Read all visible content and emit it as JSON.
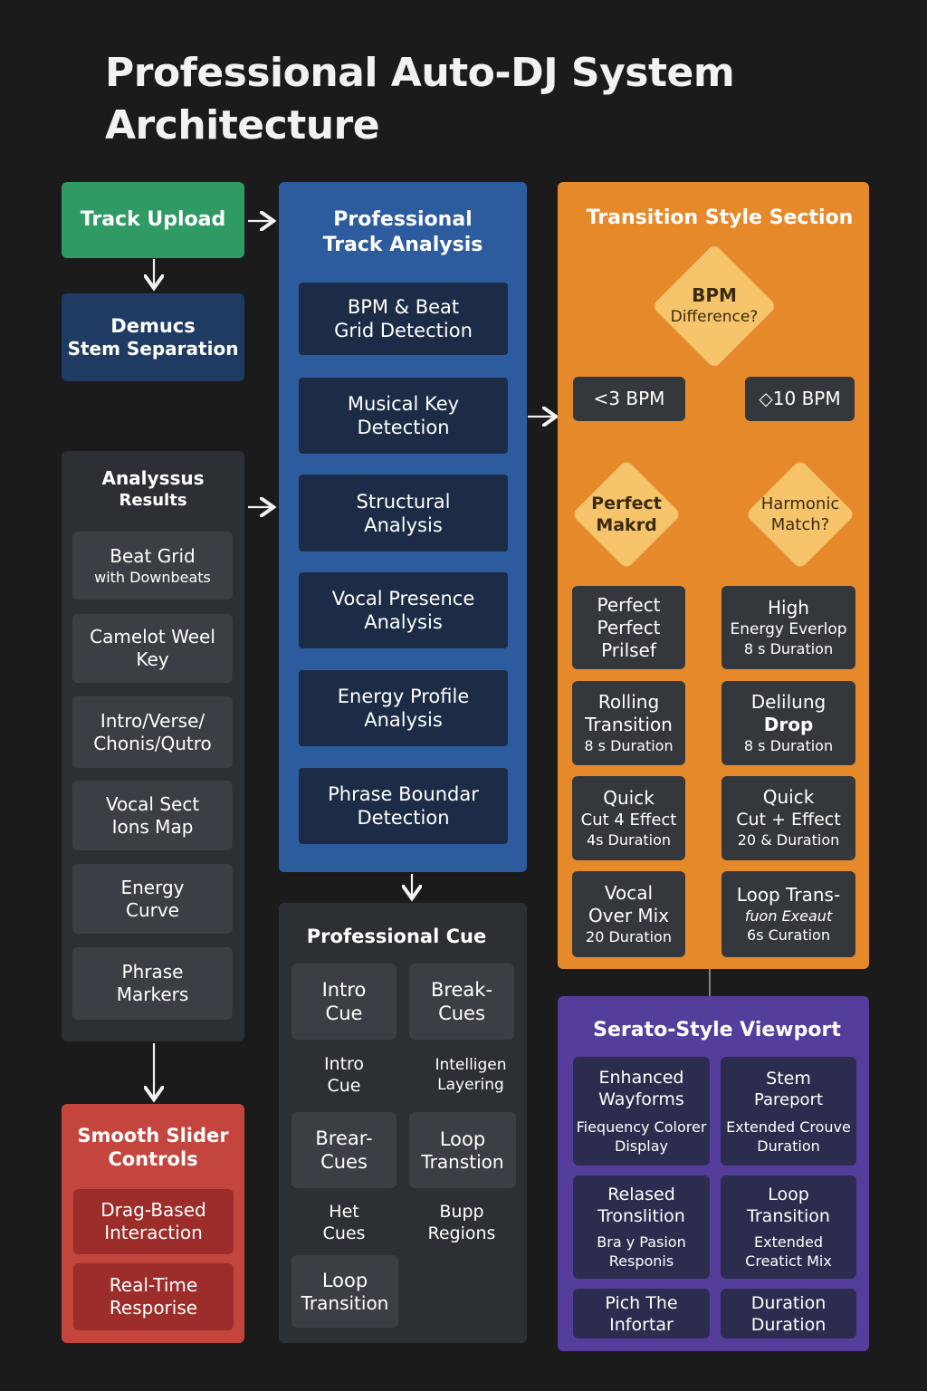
{
  "title": {
    "line1": "Professional Auto-DJ System",
    "line2": "Architecture"
  },
  "colors": {
    "background": "#1b1b1c",
    "green": "#2f9a63",
    "blue_panel": "#2d5c9e",
    "navy": "#1c2c47",
    "orange_panel": "#e5892a",
    "purple_panel": "#553d9b",
    "red_panel": "#c4453d",
    "grey_panel": "#2c2f33"
  },
  "left": {
    "track_upload": "Track Upload",
    "demucs": {
      "line1": "Demucs",
      "line2": "Stem Separation"
    },
    "analysis_results": {
      "title": {
        "line1": "Analyssus",
        "line2": "Results"
      },
      "items": [
        {
          "line1": "Beat Grid",
          "line2": "with Downbeats"
        },
        {
          "line1": "Camelot Weel",
          "line2": "Key"
        },
        {
          "line1": "Intro/Verse/",
          "line2": "Chonis/Qutro"
        },
        {
          "line1": "Vocal Sect",
          "line2": "Ions Map"
        },
        {
          "line1": "Energy",
          "line2": "Curve"
        },
        {
          "line1": "Phrase",
          "line2": "Markers"
        }
      ]
    },
    "slider": {
      "title": {
        "line1": "Smooth Slider",
        "line2": "Controls"
      },
      "items": [
        {
          "line1": "Drag-Based",
          "line2": "Interaction"
        },
        {
          "line1": "Real-Time",
          "line2": "Resporise"
        }
      ]
    }
  },
  "analysis": {
    "title": {
      "line1": "Professional",
      "line2": "Track Analysis"
    },
    "steps": [
      {
        "line1": "BPM & Beat",
        "line2": "Grid Detection"
      },
      {
        "line1": "Musical Key",
        "line2": "Detection"
      },
      {
        "line1": "Structural",
        "line2": "Analysis"
      },
      {
        "line1": "Vocal Presence",
        "line2": "Analysis"
      },
      {
        "line1": "Energy Profile",
        "line2": "Analysis"
      },
      {
        "line1": "Phrase Boundar",
        "line2": "Detection"
      }
    ]
  },
  "cue": {
    "title": "Professional Cue",
    "items": [
      {
        "line1": "Intro",
        "line2": "Cue",
        "boxed": true
      },
      {
        "line1": "Break-",
        "line2": "Cues",
        "boxed": true
      },
      {
        "line1": "Intro",
        "line2": "Cue",
        "boxed": false
      },
      {
        "line1": "Intelligen",
        "line2": "Layering",
        "boxed": false
      },
      {
        "line1": "Brear-",
        "line2": "Cues",
        "boxed": true
      },
      {
        "line1": "Loop",
        "line2": "Transtion",
        "boxed": true
      },
      {
        "line1": "Het",
        "line2": "Cues",
        "boxed": false
      },
      {
        "line1": "Bupp",
        "line2": "Regions",
        "boxed": false
      },
      {
        "line1": "Loop",
        "line2": "Transition",
        "boxed": true
      }
    ]
  },
  "transition": {
    "title": "Transition Style Section",
    "bpm_diamond": {
      "line1": "BPM",
      "line2": "Difference?"
    },
    "left_bpm": "<3 BPM",
    "right_bpm": "◇10 BPM",
    "perfect_diamond": {
      "line1": "Perfect",
      "line2": "Makrd"
    },
    "harmonic_diamond": {
      "line1": "Harmonic",
      "line2": "Match?"
    },
    "left_cards": [
      {
        "line1": "Perfect",
        "line2": "Perfect",
        "line3": "Prilsef"
      },
      {
        "line1": "Rolling",
        "line2": "Transition",
        "line3": "8 s Duration"
      },
      {
        "line1": "Quick",
        "line2": "Cut 4 Effect",
        "line3": "4s Duration"
      },
      {
        "line1": "Vocal",
        "line2": "Over Mix",
        "line3": "20 Duration"
      }
    ],
    "right_cards": [
      {
        "line1": "High",
        "line2": "Energy Everlop",
        "line3": "8 s Duration"
      },
      {
        "line1": "Delilung",
        "line2": "Drop",
        "line3": "8 s Duration"
      },
      {
        "line1": "Quick",
        "line2": "Cut + Effect",
        "line3": "20 & Duration"
      },
      {
        "line1": "Loop Trans-",
        "line2": "fuon Exeaut",
        "line3": "6s Curation"
      }
    ]
  },
  "viewport": {
    "title": "Serato-Style Viewport",
    "cards": [
      {
        "line1": "Enhanced",
        "line2": "Wayforms",
        "line3": "Fiequency Colorer",
        "line4": "Display"
      },
      {
        "line1": "Stem",
        "line2": "Pareport",
        "line3": "Extended Crouve",
        "line4": "Duration"
      },
      {
        "line1": "Relased",
        "line2": "Tronslition",
        "line3": "Bra y Pasion",
        "line4": "Responis"
      },
      {
        "line1": "Loop",
        "line2": "Transition",
        "line3": "Extended",
        "line4": "Creatict Mix"
      },
      {
        "line1": "Pich The",
        "line2": "Infortar",
        "line3": "",
        "line4": ""
      },
      {
        "line1": "Duration",
        "line2": "Duration",
        "line3": "",
        "line4": ""
      }
    ]
  }
}
